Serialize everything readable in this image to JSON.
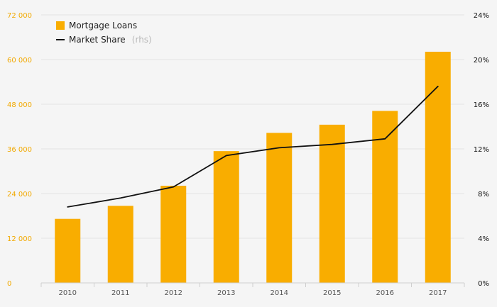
{
  "chart_data": {
    "type": "bar",
    "categories": [
      "2010",
      "2011",
      "2012",
      "2013",
      "2014",
      "2015",
      "2016",
      "2017"
    ],
    "series": [
      {
        "name": "Mortgage Loans",
        "type": "bar",
        "axis": "left",
        "values": [
          17200,
          20700,
          26100,
          35400,
          40300,
          42500,
          46200,
          62100
        ]
      },
      {
        "name": "Market Share",
        "name_suffix": "(rhs)",
        "type": "line",
        "axis": "right",
        "values": [
          6.8,
          7.6,
          8.6,
          11.4,
          12.1,
          12.4,
          12.9,
          17.6
        ]
      }
    ],
    "y_left": {
      "ylim": [
        0,
        72000
      ],
      "ticks": [
        0,
        12000,
        24000,
        36000,
        48000,
        60000,
        72000
      ],
      "tick_labels": [
        "0",
        "12 000",
        "24 000",
        "36 000",
        "48 000",
        "60 000",
        "72 000"
      ]
    },
    "y_right": {
      "ylim": [
        0,
        24
      ],
      "ticks": [
        0,
        4,
        8,
        12,
        16,
        20,
        24
      ],
      "tick_labels": [
        "0%",
        "4%",
        "8%",
        "12%",
        "16%",
        "20%",
        "24%"
      ]
    },
    "legend_position": "top-left",
    "grid": true,
    "colors": {
      "bar": "#f9ad00",
      "line": "#111111",
      "grid": "#e2e2e2",
      "left_axis_text": "#f2a900",
      "right_axis_text": "#111111",
      "x_axis_text": "#555555",
      "background": "#f5f5f5"
    }
  }
}
